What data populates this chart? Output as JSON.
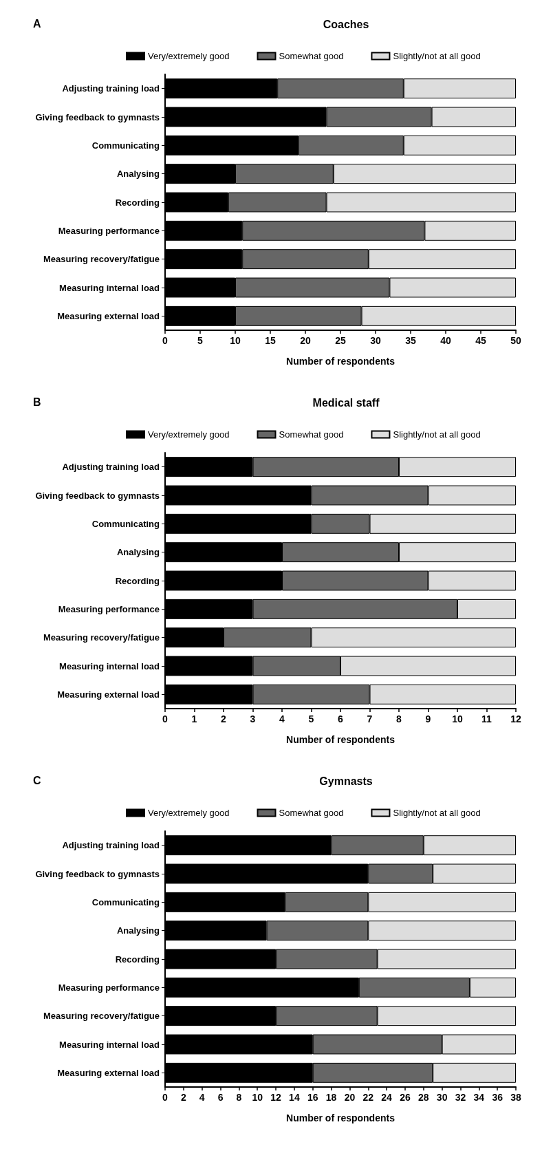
{
  "chart_data": [
    {
      "type": "bar",
      "orientation": "horizontal",
      "stacked": true,
      "title": "Coaches",
      "annotations": [
        "A"
      ],
      "xlabel": "Number of respondents",
      "legend": "top",
      "grid": false,
      "categories": [
        "Adjusting training load",
        "Giving feedback to gymnasts",
        "Communicating",
        "Analysing",
        "Recording",
        "Measuring performance",
        "Measuring recovery/fatigue",
        "Measuring internal load",
        "Measuring external load"
      ],
      "series": [
        {
          "name": "Very/extremely good",
          "color": "#000000",
          "values": [
            16,
            23,
            19,
            10,
            9,
            11,
            11,
            10,
            10
          ]
        },
        {
          "name": "Somewhat good",
          "color": "#666666",
          "values": [
            18,
            15,
            15,
            14,
            14,
            26,
            18,
            22,
            18
          ]
        },
        {
          "name": "Slightly/not at all good",
          "color": "#dddddd",
          "values": [
            16,
            12,
            16,
            26,
            27,
            13,
            21,
            18,
            22
          ]
        }
      ],
      "xlim": [
        0,
        50
      ],
      "xticks": [
        0,
        5,
        10,
        15,
        20,
        25,
        30,
        35,
        40,
        45,
        50
      ]
    },
    {
      "type": "bar",
      "orientation": "horizontal",
      "stacked": true,
      "title": "Medical staff",
      "annotations": [
        "B"
      ],
      "xlabel": "Number of respondents",
      "legend": "top",
      "grid": false,
      "categories": [
        "Adjusting training load",
        "Giving feedback to gymnasts",
        "Communicating",
        "Analysing",
        "Recording",
        "Measuring performance",
        "Measuring recovery/fatigue",
        "Measuring internal load",
        "Measuring external load"
      ],
      "series": [
        {
          "name": "Very/extremely good",
          "color": "#000000",
          "values": [
            3,
            5,
            5,
            4,
            4,
            3,
            2,
            3,
            3
          ]
        },
        {
          "name": "Somewhat good",
          "color": "#666666",
          "values": [
            5,
            4,
            2,
            4,
            5,
            7,
            3,
            3,
            4
          ]
        },
        {
          "name": "Slightly/not at all good",
          "color": "#dddddd",
          "values": [
            4,
            3,
            5,
            4,
            3,
            2,
            7,
            6,
            5
          ]
        }
      ],
      "xlim": [
        0,
        12
      ],
      "xticks": [
        0,
        1,
        2,
        3,
        4,
        5,
        6,
        7,
        8,
        9,
        10,
        11,
        12
      ]
    },
    {
      "type": "bar",
      "orientation": "horizontal",
      "stacked": true,
      "title": "Gymnasts",
      "annotations": [
        "C"
      ],
      "xlabel": "Number of respondents",
      "legend": "top",
      "grid": false,
      "categories": [
        "Adjusting training load",
        "Giving feedback to gymnasts",
        "Communicating",
        "Analysing",
        "Recording",
        "Measuring performance",
        "Measuring recovery/fatigue",
        "Measuring internal load",
        "Measuring external load"
      ],
      "series": [
        {
          "name": "Very/extremely good",
          "color": "#000000",
          "values": [
            18,
            22,
            13,
            11,
            12,
            21,
            12,
            16,
            16
          ]
        },
        {
          "name": "Somewhat good",
          "color": "#666666",
          "values": [
            10,
            7,
            9,
            11,
            11,
            12,
            11,
            14,
            13
          ]
        },
        {
          "name": "Slightly/not at all good",
          "color": "#dddddd",
          "values": [
            10,
            9,
            16,
            16,
            15,
            5,
            15,
            8,
            9
          ]
        }
      ],
      "xlim": [
        0,
        38
      ],
      "xticks": [
        0,
        2,
        4,
        6,
        8,
        10,
        12,
        14,
        16,
        18,
        20,
        22,
        24,
        26,
        28,
        30,
        32,
        34,
        36,
        38
      ]
    }
  ]
}
